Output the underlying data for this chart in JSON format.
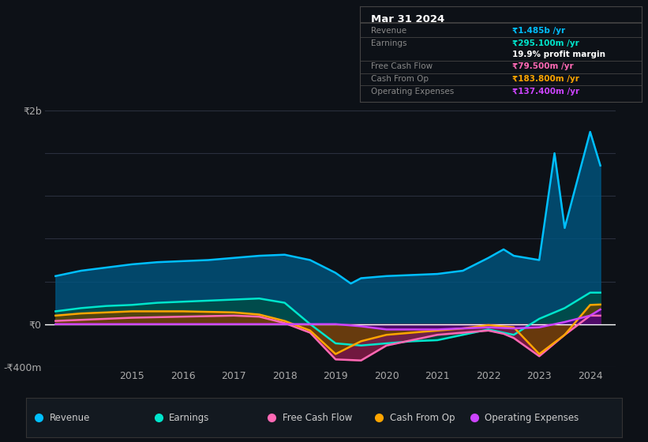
{
  "bg_color": "#0d1117",
  "plot_bg_color": "#0d1117",
  "grid_color": "#2a2f3d",
  "zero_line_color": "#ffffff",
  "title": "Mar 31 2024",
  "table": {
    "Revenue": {
      "label": "Revenue",
      "value": "₹1.485b /yr",
      "color": "#00bfff"
    },
    "Earnings": {
      "label": "Earnings",
      "value": "₹295.100m /yr",
      "color": "#00e5cc"
    },
    "profit_margin": {
      "label": "",
      "value": "19.9% profit margin",
      "color": "#ffffff"
    },
    "Free Cash Flow": {
      "label": "Free Cash Flow",
      "value": "₹79.500m /yr",
      "color": "#ff69b4"
    },
    "Cash From Op": {
      "label": "Cash From Op",
      "value": "₹183.800m /yr",
      "color": "#ffa500"
    },
    "Operating Expenses": {
      "label": "Operating Expenses",
      "value": "₹137.400m /yr",
      "color": "#cc44ff"
    }
  },
  "ylim": [
    -400,
    2000
  ],
  "yticks": [
    -400,
    0,
    2000
  ],
  "ytick_labels": [
    "-₹400m",
    "₹0",
    "₹2b"
  ],
  "series": {
    "Revenue": {
      "color": "#00bfff",
      "fill_color": "#005580",
      "x": [
        2013.5,
        2014,
        2014.5,
        2015,
        2015.5,
        2016,
        2016.5,
        2017,
        2017.5,
        2018,
        2018.5,
        2019,
        2019.3,
        2019.5,
        2020,
        2020.5,
        2021,
        2021.5,
        2022,
        2022.3,
        2022.5,
        2023,
        2023.3,
        2023.5,
        2024,
        2024.2
      ],
      "y": [
        450,
        500,
        530,
        560,
        580,
        590,
        600,
        620,
        640,
        650,
        600,
        480,
        380,
        430,
        450,
        460,
        470,
        500,
        620,
        700,
        640,
        600,
        1600,
        900,
        1800,
        1485
      ]
    },
    "Earnings": {
      "color": "#00e5cc",
      "fill_color": "#004d44",
      "x": [
        2013.5,
        2014,
        2014.5,
        2015,
        2015.5,
        2016,
        2016.5,
        2017,
        2017.5,
        2018,
        2018.3,
        2018.5,
        2019,
        2019.5,
        2020,
        2020.5,
        2021,
        2021.5,
        2022,
        2022.5,
        2023,
        2023.5,
        2024,
        2024.2
      ],
      "y": [
        120,
        150,
        170,
        180,
        200,
        210,
        220,
        230,
        240,
        200,
        80,
        0,
        -180,
        -200,
        -180,
        -160,
        -150,
        -100,
        -50,
        -100,
        50,
        150,
        295,
        295
      ]
    },
    "Free Cash Flow": {
      "color": "#ff69b4",
      "fill_color": "#8b1a4a",
      "x": [
        2013.5,
        2014,
        2014.5,
        2015,
        2015.5,
        2016,
        2016.5,
        2017,
        2017.5,
        2018,
        2018.5,
        2019,
        2019.5,
        2020,
        2020.5,
        2021,
        2021.5,
        2022,
        2022.3,
        2022.5,
        2023,
        2023.5,
        2024,
        2024.2
      ],
      "y": [
        30,
        40,
        50,
        60,
        65,
        70,
        75,
        80,
        70,
        10,
        -80,
        -330,
        -340,
        -200,
        -150,
        -100,
        -80,
        -60,
        -90,
        -130,
        -300,
        -100,
        80,
        79.5
      ]
    },
    "Cash From Op": {
      "color": "#ffa500",
      "fill_color": "#664200",
      "x": [
        2013.5,
        2014,
        2014.5,
        2015,
        2015.5,
        2016,
        2016.5,
        2017,
        2017.5,
        2018,
        2018.5,
        2019,
        2019.5,
        2020,
        2020.5,
        2021,
        2021.5,
        2022,
        2022.5,
        2023,
        2023.5,
        2024,
        2024.2
      ],
      "y": [
        80,
        100,
        110,
        120,
        120,
        120,
        115,
        110,
        90,
        30,
        -60,
        -280,
        -160,
        -100,
        -80,
        -60,
        -40,
        -10,
        -30,
        -280,
        -100,
        180,
        183.8
      ]
    },
    "Operating Expenses": {
      "color": "#cc44ff",
      "fill_color": "#4a0080",
      "x": [
        2013.5,
        2014,
        2014.5,
        2015,
        2015.5,
        2016,
        2016.5,
        2017,
        2017.5,
        2018,
        2018.5,
        2019,
        2019.5,
        2020,
        2020.5,
        2021,
        2021.5,
        2022,
        2022.5,
        2023,
        2023.5,
        2024,
        2024.2
      ],
      "y": [
        0,
        0,
        0,
        0,
        0,
        0,
        0,
        0,
        0,
        0,
        0,
        0,
        -20,
        -50,
        -50,
        -50,
        -40,
        -30,
        -40,
        -30,
        20,
        80,
        137.4
      ]
    }
  },
  "legend": [
    {
      "label": "Revenue",
      "color": "#00bfff"
    },
    {
      "label": "Earnings",
      "color": "#00e5cc"
    },
    {
      "label": "Free Cash Flow",
      "color": "#ff69b4"
    },
    {
      "label": "Cash From Op",
      "color": "#ffa500"
    },
    {
      "label": "Operating Expenses",
      "color": "#cc44ff"
    }
  ]
}
